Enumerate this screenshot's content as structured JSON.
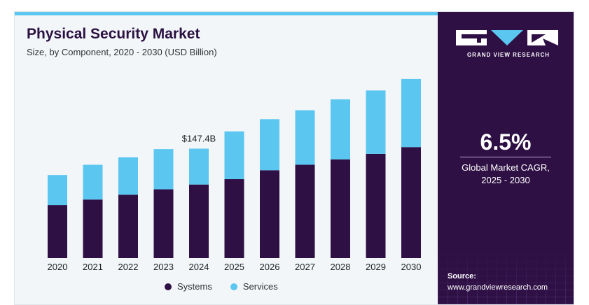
{
  "header": {
    "title": "Physical Security Market",
    "subtitle": "Size, by Component, 2020 - 2030 (USD Billion)"
  },
  "colors": {
    "systems": "#2e1044",
    "services": "#5bc6ef",
    "accent_bar": "#5bc6ef",
    "panel": "#2e1044"
  },
  "chart_data": {
    "type": "bar",
    "stacked": true,
    "title": "Physical Security Market",
    "subtitle": "Size, by Component, 2020 - 2030 (USD Billion)",
    "categories": [
      "2020",
      "2021",
      "2022",
      "2023",
      "2024",
      "2025",
      "2026",
      "2027",
      "2028",
      "2029",
      "2030"
    ],
    "series": [
      {
        "name": "Systems",
        "values": [
          71.5,
          78.9,
          85.3,
          92.7,
          99.1,
          106.4,
          118.3,
          125.7,
          133.0,
          140.4,
          149.5
        ]
      },
      {
        "name": "Services",
        "values": [
          40.4,
          46.8,
          50.4,
          54.1,
          48.3,
          64.2,
          68.8,
          73.4,
          80.7,
          85.3,
          91.7
        ]
      }
    ],
    "ylim": [
      0,
      275
    ],
    "grid": false,
    "legend": "bottom",
    "annotations": [
      {
        "category": "2024",
        "text": "$147.4B"
      }
    ]
  },
  "legend": {
    "systems": "Systems",
    "services": "Services"
  },
  "sidebar": {
    "brand": "GRAND VIEW RESEARCH",
    "cagr_value": "6.5%",
    "cagr_label_line1": "Global Market CAGR,",
    "cagr_label_line2": "2025 - 2030",
    "source_label": "Source:",
    "source_url": "www.grandviewresearch.com"
  }
}
